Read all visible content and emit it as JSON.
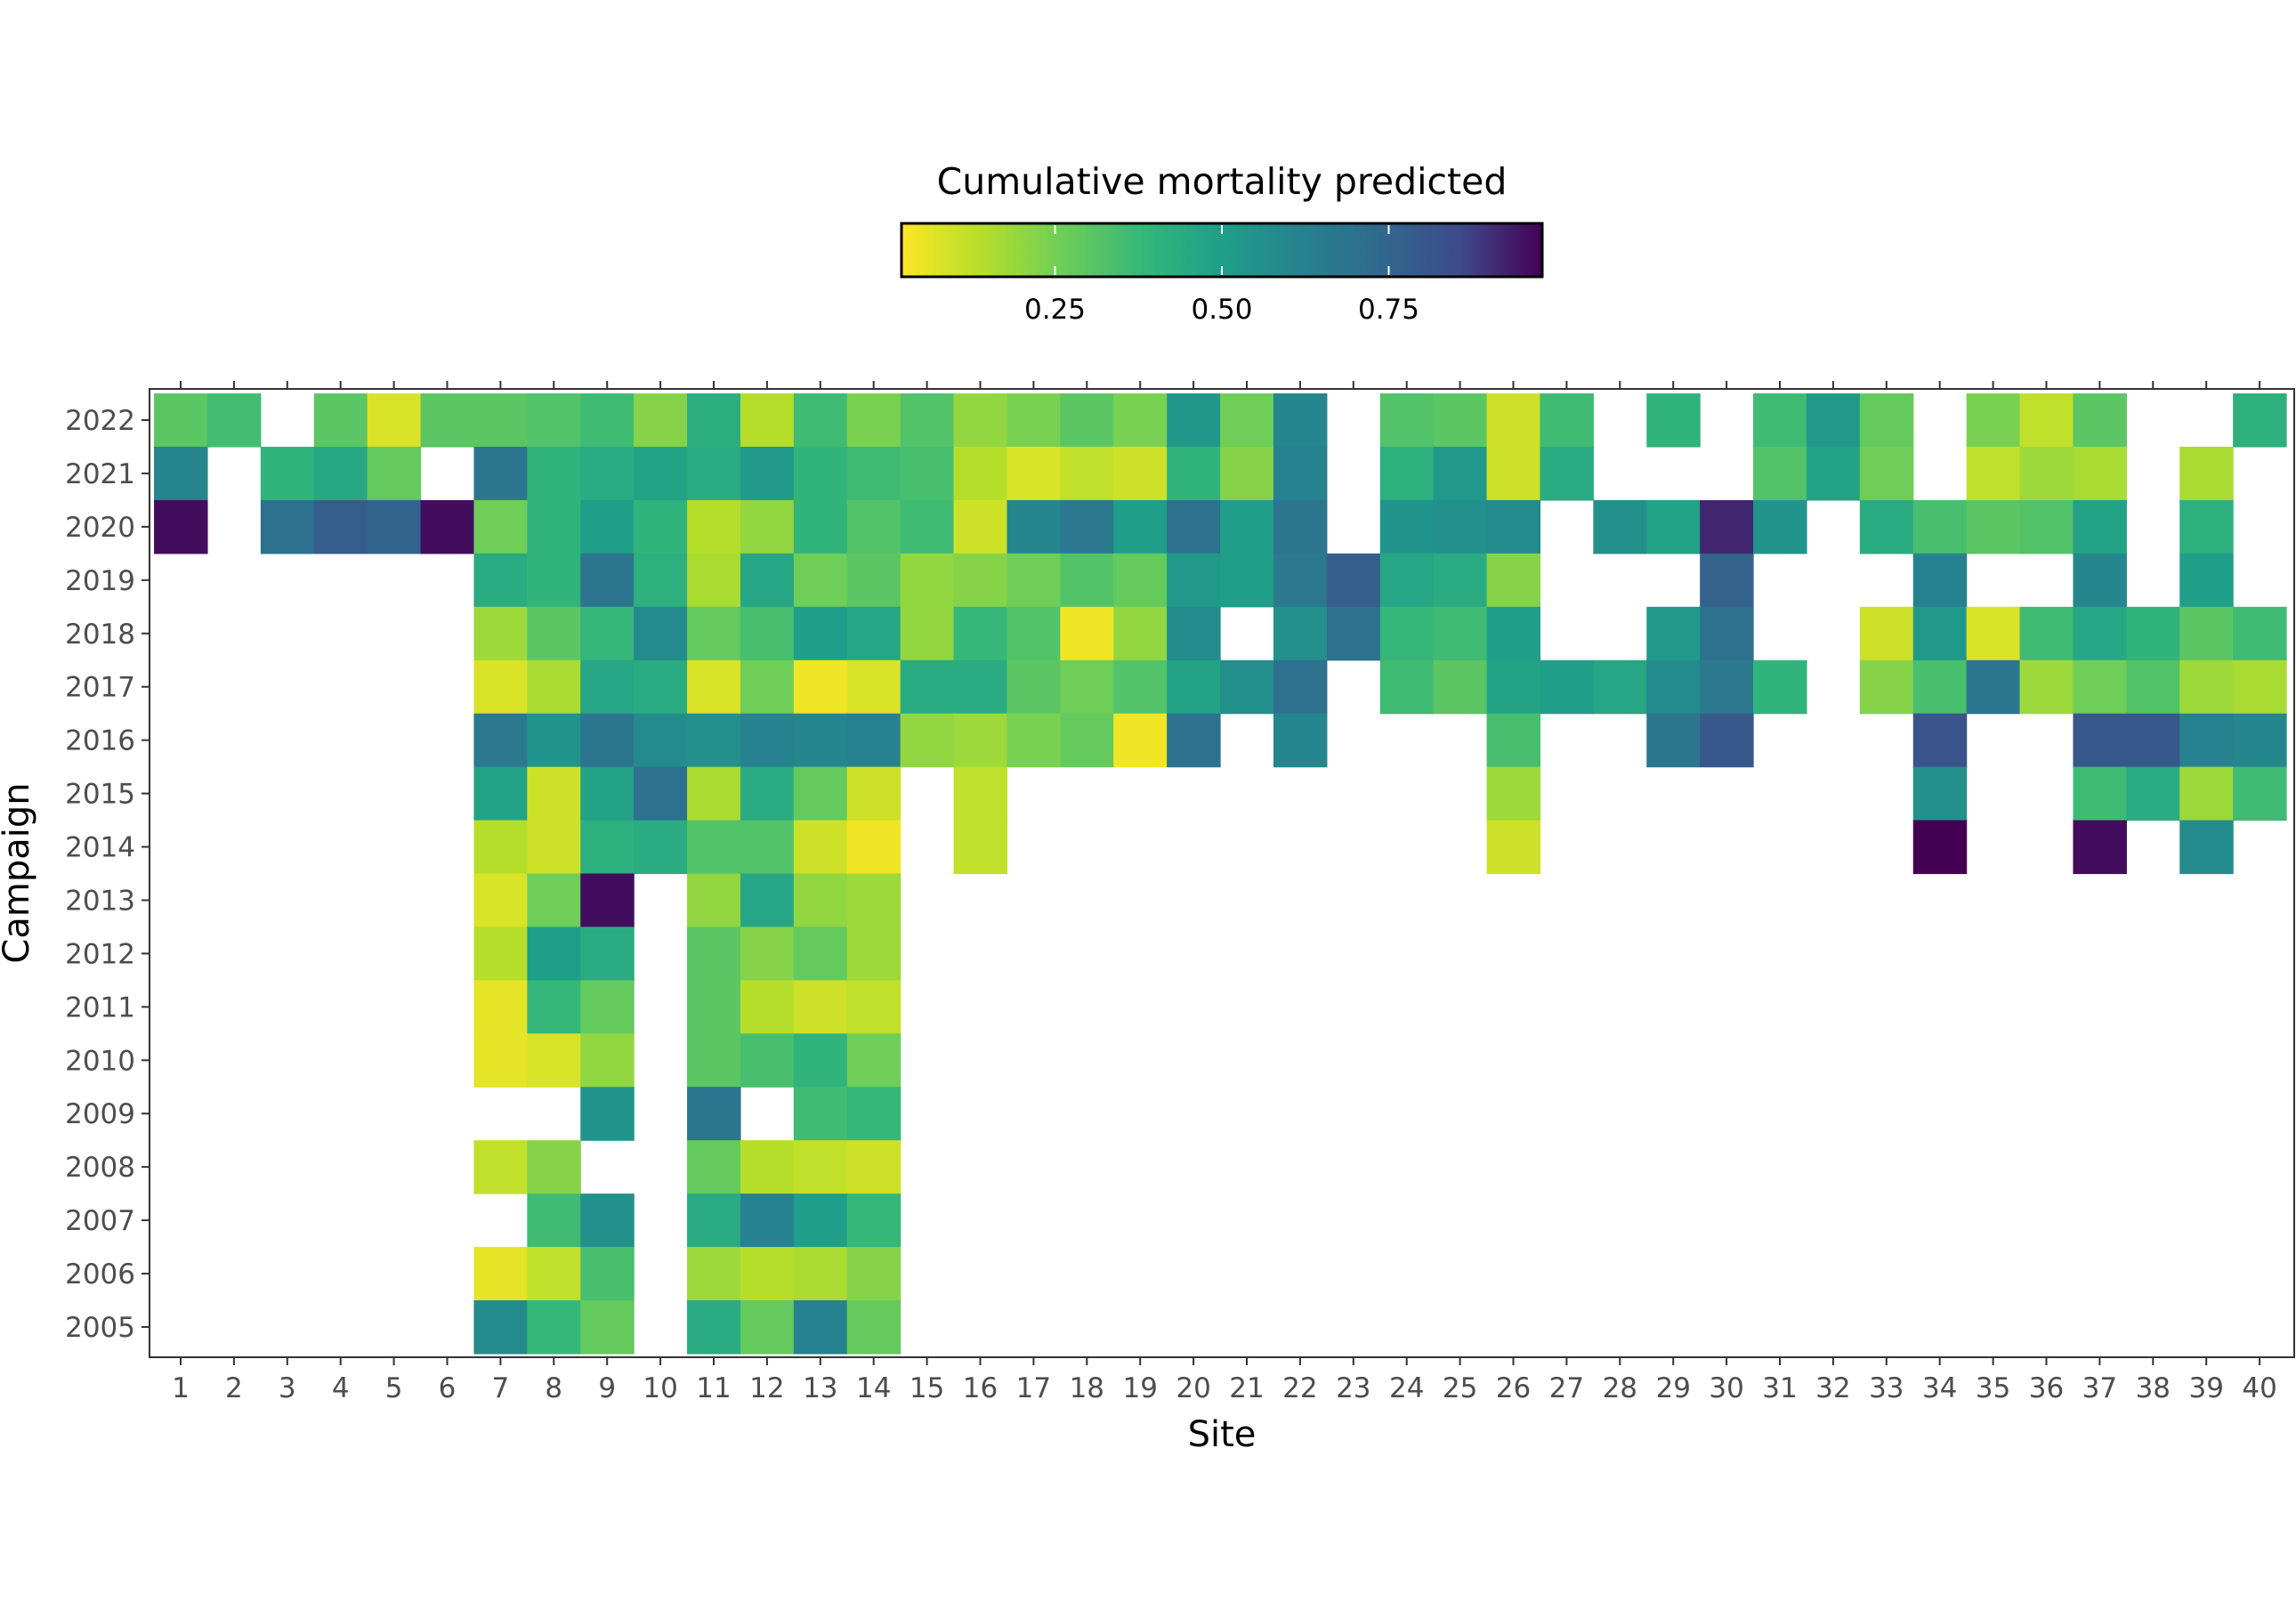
{
  "chart_data": {
    "type": "heatmap",
    "xlabel": "Site",
    "ylabel": "Campaign",
    "legend_title": "Cumulative mortality predicted",
    "legend_position": "top",
    "colormap": "viridis (reversed: low = yellow, high = purple)",
    "color_range": [
      0.02,
      0.98
    ],
    "colorbar_ticks": [
      0.25,
      0.5,
      0.75
    ],
    "colorbar_tick_labels": [
      "0.25",
      "0.50",
      "0.75"
    ],
    "x_categories": [
      "1",
      "2",
      "3",
      "4",
      "5",
      "6",
      "7",
      "8",
      "9",
      "10",
      "11",
      "12",
      "13",
      "14",
      "15",
      "16",
      "17",
      "18",
      "19",
      "20",
      "21",
      "22",
      "23",
      "24",
      "25",
      "26",
      "27",
      "28",
      "29",
      "30",
      "31",
      "32",
      "33",
      "34",
      "35",
      "36",
      "37",
      "38",
      "39",
      "40"
    ],
    "y_categories": [
      "2022",
      "2021",
      "2020",
      "2019",
      "2018",
      "2017",
      "2016",
      "2015",
      "2014",
      "2013",
      "2012",
      "2011",
      "2010",
      "2009",
      "2008",
      "2007",
      "2006",
      "2005"
    ],
    "values": [
      [
        0.3,
        0.35,
        null,
        0.3,
        0.08,
        0.3,
        0.3,
        0.32,
        0.36,
        0.22,
        0.43,
        0.14,
        0.36,
        0.24,
        0.32,
        0.2,
        0.24,
        0.3,
        0.24,
        0.53,
        0.26,
        0.6,
        null,
        0.32,
        0.3,
        0.1,
        0.36,
        null,
        0.4,
        null,
        0.36,
        0.52,
        0.28,
        null,
        0.24,
        0.12,
        0.3,
        null,
        null,
        0.42
      ],
      [
        0.6,
        null,
        0.4,
        0.45,
        0.28,
        null,
        0.68,
        0.4,
        0.44,
        0.48,
        0.44,
        0.52,
        0.4,
        0.36,
        0.34,
        0.14,
        0.08,
        0.12,
        0.1,
        0.4,
        0.22,
        0.62,
        null,
        0.42,
        0.52,
        0.1,
        0.44,
        null,
        null,
        null,
        0.32,
        0.48,
        0.26,
        null,
        0.12,
        0.18,
        0.16,
        null,
        0.16,
        null
      ],
      [
        0.96,
        null,
        0.7,
        0.78,
        0.75,
        0.96,
        0.26,
        0.4,
        0.5,
        0.4,
        0.14,
        0.2,
        0.4,
        0.32,
        0.36,
        0.1,
        0.6,
        0.66,
        0.5,
        0.7,
        0.5,
        0.68,
        null,
        0.54,
        0.56,
        0.58,
        null,
        0.56,
        0.48,
        0.92,
        0.54,
        null,
        0.44,
        0.34,
        0.3,
        0.32,
        0.48,
        null,
        0.42,
        null
      ],
      [
        null,
        null,
        null,
        null,
        null,
        null,
        0.44,
        0.4,
        0.68,
        0.42,
        0.16,
        0.46,
        0.26,
        0.3,
        0.2,
        0.22,
        0.26,
        0.32,
        0.28,
        0.52,
        0.5,
        0.66,
        0.78,
        0.46,
        0.44,
        0.22,
        null,
        null,
        null,
        0.76,
        null,
        null,
        null,
        0.62,
        null,
        null,
        0.6,
        null,
        0.5,
        null
      ],
      [
        null,
        null,
        null,
        null,
        null,
        null,
        0.18,
        0.3,
        0.38,
        0.58,
        0.28,
        0.34,
        0.5,
        0.46,
        0.2,
        0.38,
        0.32,
        0.04,
        0.2,
        0.58,
        null,
        0.56,
        0.7,
        0.38,
        0.36,
        0.5,
        null,
        null,
        0.52,
        0.7,
        null,
        null,
        0.1,
        0.52,
        0.08,
        0.36,
        0.46,
        0.4,
        0.3,
        0.36
      ],
      [
        null,
        null,
        null,
        null,
        null,
        null,
        0.08,
        0.16,
        0.46,
        0.44,
        0.08,
        0.26,
        0.04,
        0.08,
        0.44,
        0.44,
        0.3,
        0.26,
        0.32,
        0.48,
        0.56,
        0.7,
        null,
        0.36,
        0.3,
        0.48,
        0.5,
        0.46,
        0.58,
        0.66,
        0.4,
        null,
        0.22,
        0.34,
        0.68,
        0.18,
        0.26,
        0.32,
        0.18,
        0.16
      ],
      [
        null,
        null,
        null,
        null,
        null,
        null,
        0.66,
        0.54,
        0.68,
        0.58,
        0.56,
        0.62,
        0.6,
        0.62,
        0.2,
        0.18,
        0.24,
        0.28,
        0.04,
        0.7,
        null,
        0.6,
        null,
        null,
        null,
        0.34,
        null,
        null,
        0.68,
        0.8,
        null,
        null,
        null,
        0.82,
        null,
        null,
        0.8,
        0.8,
        0.62,
        0.6
      ],
      [
        null,
        null,
        null,
        null,
        null,
        null,
        0.48,
        0.1,
        0.48,
        0.7,
        0.16,
        0.44,
        0.28,
        0.1,
        null,
        0.12,
        null,
        null,
        null,
        null,
        null,
        null,
        null,
        null,
        null,
        0.18,
        null,
        null,
        null,
        null,
        null,
        null,
        null,
        0.56,
        null,
        null,
        0.36,
        0.44,
        0.18,
        0.36
      ],
      [
        null,
        null,
        null,
        null,
        null,
        null,
        0.14,
        0.1,
        0.42,
        0.44,
        0.32,
        0.32,
        0.1,
        0.04,
        null,
        0.12,
        null,
        null,
        null,
        null,
        null,
        null,
        null,
        null,
        null,
        0.1,
        null,
        null,
        null,
        null,
        null,
        null,
        null,
        0.98,
        null,
        null,
        0.96,
        null,
        0.58,
        null
      ],
      [
        null,
        null,
        null,
        null,
        null,
        null,
        0.08,
        0.26,
        0.96,
        null,
        0.2,
        0.46,
        0.2,
        0.18,
        null,
        null,
        null,
        null,
        null,
        null,
        null,
        null,
        null,
        null,
        null,
        null,
        null,
        null,
        null,
        null,
        null,
        null,
        null,
        null,
        null,
        null,
        null,
        null,
        null,
        null
      ],
      [
        null,
        null,
        null,
        null,
        null,
        null,
        0.14,
        0.5,
        0.44,
        null,
        0.3,
        0.22,
        0.28,
        0.18,
        null,
        null,
        null,
        null,
        null,
        null,
        null,
        null,
        null,
        null,
        null,
        null,
        null,
        null,
        null,
        null,
        null,
        null,
        null,
        null,
        null,
        null,
        null,
        null,
        null,
        null
      ],
      [
        null,
        null,
        null,
        null,
        null,
        null,
        0.06,
        0.38,
        0.28,
        null,
        0.3,
        0.14,
        0.1,
        0.12,
        null,
        null,
        null,
        null,
        null,
        null,
        null,
        null,
        null,
        null,
        null,
        null,
        null,
        null,
        null,
        null,
        null,
        null,
        null,
        null,
        null,
        null,
        null,
        null,
        null,
        null
      ],
      [
        null,
        null,
        null,
        null,
        null,
        null,
        0.06,
        0.08,
        0.2,
        null,
        0.3,
        0.34,
        0.4,
        0.26,
        null,
        null,
        null,
        null,
        null,
        null,
        null,
        null,
        null,
        null,
        null,
        null,
        null,
        null,
        null,
        null,
        null,
        null,
        null,
        null,
        null,
        null,
        null,
        null,
        null,
        null
      ],
      [
        null,
        null,
        null,
        null,
        null,
        null,
        null,
        null,
        0.54,
        null,
        0.68,
        null,
        0.36,
        0.38,
        null,
        null,
        null,
        null,
        null,
        null,
        null,
        null,
        null,
        null,
        null,
        null,
        null,
        null,
        null,
        null,
        null,
        null,
        null,
        null,
        null,
        null,
        null,
        null,
        null,
        null
      ],
      [
        null,
        null,
        null,
        null,
        null,
        null,
        0.12,
        0.22,
        null,
        null,
        0.28,
        0.14,
        0.12,
        0.1,
        null,
        null,
        null,
        null,
        null,
        null,
        null,
        null,
        null,
        null,
        null,
        null,
        null,
        null,
        null,
        null,
        null,
        null,
        null,
        null,
        null,
        null,
        null,
        null,
        null,
        null
      ],
      [
        null,
        null,
        null,
        null,
        null,
        null,
        null,
        0.36,
        0.56,
        null,
        0.44,
        0.62,
        0.5,
        0.38,
        null,
        null,
        null,
        null,
        null,
        null,
        null,
        null,
        null,
        null,
        null,
        null,
        null,
        null,
        null,
        null,
        null,
        null,
        null,
        null,
        null,
        null,
        null,
        null,
        null,
        null
      ],
      [
        null,
        null,
        null,
        null,
        null,
        null,
        0.06,
        0.12,
        0.34,
        null,
        0.18,
        0.14,
        0.16,
        0.22,
        null,
        null,
        null,
        null,
        null,
        null,
        null,
        null,
        null,
        null,
        null,
        null,
        null,
        null,
        null,
        null,
        null,
        null,
        null,
        null,
        null,
        null,
        null,
        null,
        null,
        null
      ],
      [
        null,
        null,
        null,
        null,
        null,
        null,
        0.58,
        0.38,
        0.28,
        null,
        0.44,
        0.28,
        0.62,
        0.28,
        null,
        null,
        null,
        null,
        null,
        null,
        null,
        null,
        null,
        null,
        null,
        null,
        null,
        null,
        null,
        null,
        null,
        null,
        null,
        null,
        null,
        null,
        null,
        null,
        null,
        null
      ]
    ]
  }
}
